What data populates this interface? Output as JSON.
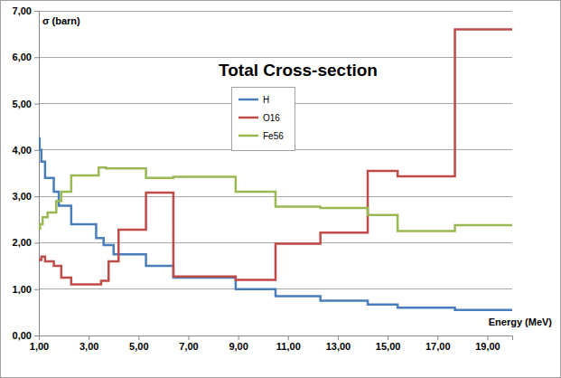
{
  "chart_data": {
    "type": "line",
    "line_style": "step",
    "title": "Total Cross-section",
    "y_label": "σ (barn)",
    "x_label": "Energy (MeV)",
    "xlim": [
      1,
      20
    ],
    "xticks": [
      {
        "value": 1,
        "label": "1,00"
      },
      {
        "value": 3,
        "label": "3,00"
      },
      {
        "value": 5,
        "label": "5,00"
      },
      {
        "value": 7,
        "label": "7,00"
      },
      {
        "value": 9,
        "label": "9,00"
      },
      {
        "value": 11,
        "label": "11,00"
      },
      {
        "value": 13,
        "label": "13,00"
      },
      {
        "value": 15,
        "label": "15,00"
      },
      {
        "value": 17,
        "label": "17,00"
      },
      {
        "value": 19,
        "label": "19,00"
      }
    ],
    "ylim": [
      0,
      7
    ],
    "yticks": [
      {
        "value": 0,
        "label": "0,00"
      },
      {
        "value": 1,
        "label": "1,00"
      },
      {
        "value": 2,
        "label": "2,00"
      },
      {
        "value": 3,
        "label": "3,00"
      },
      {
        "value": 4,
        "label": "4,00"
      },
      {
        "value": 5,
        "label": "5,00"
      },
      {
        "value": 6,
        "label": "6,00"
      },
      {
        "value": 7,
        "label": "7,00"
      }
    ],
    "grid": true,
    "legend": "top",
    "series": [
      {
        "name": "H",
        "color": "#4a7ebb",
        "x": [
          1,
          1.03,
          1.1,
          1.25,
          1.6,
          1.8,
          2.3,
          3.3,
          3.6,
          4.0,
          5.3,
          6.4,
          8.9,
          10.5,
          12.3,
          14.2,
          15.4,
          17.7,
          20
        ],
        "values": [
          4.25,
          4.0,
          3.75,
          3.4,
          3.1,
          2.8,
          2.4,
          2.1,
          1.95,
          1.75,
          1.5,
          1.25,
          1.0,
          0.85,
          0.75,
          0.67,
          0.6,
          0.55,
          0.55
        ]
      },
      {
        "name": "O16",
        "color": "#be4b48",
        "x": [
          1,
          1.1,
          1.25,
          1.6,
          1.9,
          2.3,
          3.5,
          3.8,
          4.2,
          5.3,
          6.4,
          8.9,
          10.5,
          12.3,
          14.2,
          15.4,
          17.7,
          20
        ],
        "values": [
          1.63,
          1.7,
          1.6,
          1.5,
          1.25,
          1.1,
          1.18,
          1.6,
          2.28,
          3.08,
          1.27,
          1.2,
          1.98,
          2.22,
          3.55,
          3.43,
          6.6,
          6.6
        ]
      },
      {
        "name": "Fe56",
        "color": "#98b954",
        "x": [
          1,
          1.05,
          1.15,
          1.35,
          1.7,
          1.9,
          2.3,
          3.4,
          3.7,
          5.3,
          6.4,
          8.9,
          10.5,
          12.3,
          14.2,
          15.4,
          17.7,
          20
        ],
        "values": [
          2.3,
          2.4,
          2.55,
          2.65,
          2.9,
          3.1,
          3.45,
          3.62,
          3.6,
          3.4,
          3.42,
          3.1,
          2.78,
          2.75,
          2.6,
          2.25,
          2.38,
          2.38
        ]
      }
    ]
  }
}
